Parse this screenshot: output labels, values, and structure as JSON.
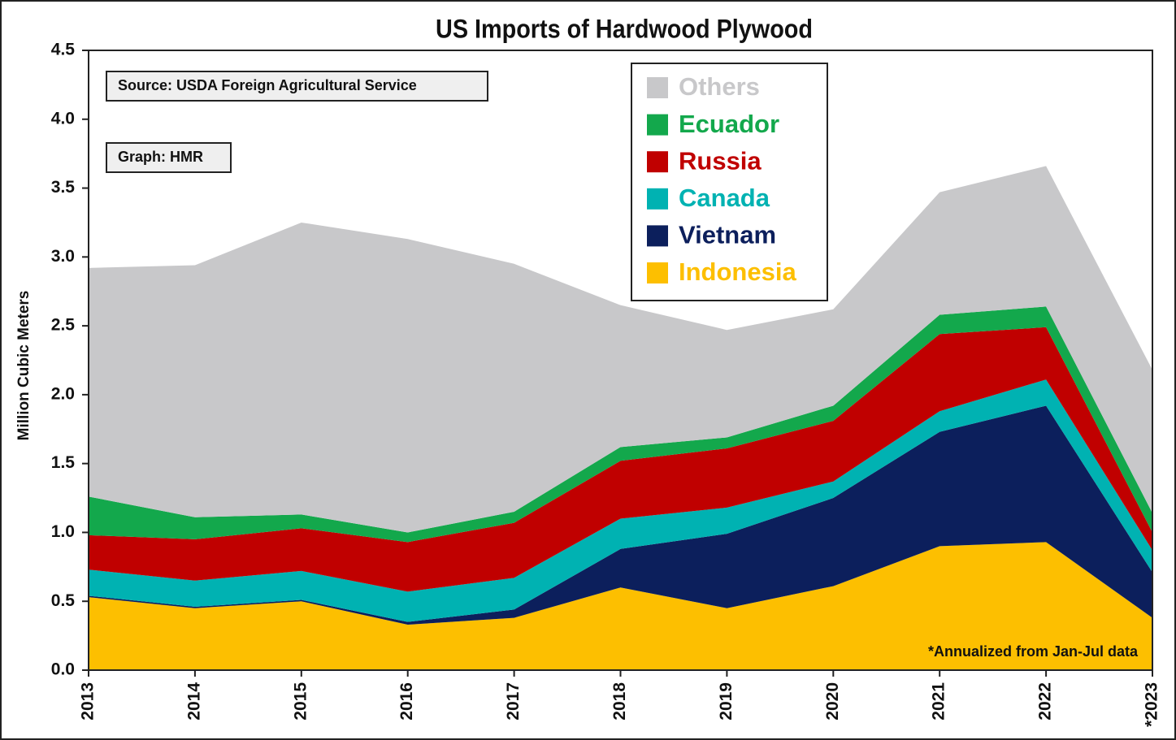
{
  "chart_data": {
    "type": "stacked_area",
    "title": "US Imports of Hardwood Plywood",
    "y_label": "Million Cubic Meters",
    "categories": [
      "2013",
      "2014",
      "2015",
      "2016",
      "2017",
      "2018",
      "2019",
      "2020",
      "2021",
      "2022",
      "*2023"
    ],
    "series": [
      {
        "name": "Indonesia",
        "color": "#fdbf00",
        "values": [
          0.53,
          0.45,
          0.5,
          0.33,
          0.38,
          0.6,
          0.45,
          0.61,
          0.9,
          0.93,
          0.38
        ]
      },
      {
        "name": "Vietnam",
        "color": "#0c1f5c",
        "values": [
          0.01,
          0.01,
          0.01,
          0.02,
          0.06,
          0.28,
          0.54,
          0.64,
          0.83,
          0.99,
          0.33
        ]
      },
      {
        "name": "Canada",
        "color": "#00b2b2",
        "values": [
          0.19,
          0.19,
          0.21,
          0.22,
          0.23,
          0.22,
          0.19,
          0.12,
          0.15,
          0.19,
          0.16
        ]
      },
      {
        "name": "Russia",
        "color": "#c00000",
        "values": [
          0.25,
          0.3,
          0.31,
          0.36,
          0.4,
          0.42,
          0.43,
          0.44,
          0.56,
          0.38,
          0.13
        ]
      },
      {
        "name": "Ecuador",
        "color": "#13a84c",
        "values": [
          0.28,
          0.16,
          0.1,
          0.07,
          0.08,
          0.1,
          0.08,
          0.11,
          0.14,
          0.15,
          0.14
        ]
      },
      {
        "name": "Others",
        "color": "#c8c8ca",
        "values": [
          1.66,
          1.83,
          2.12,
          2.13,
          1.8,
          1.03,
          0.78,
          0.7,
          0.89,
          1.02,
          1.04
        ]
      }
    ],
    "ylim": [
      0,
      4.5
    ],
    "yticks": [
      {
        "value": 0,
        "label": "0.0"
      },
      0.5,
      {
        "value": 1,
        "label": "1.0"
      },
      1.5,
      {
        "value": 2,
        "label": "2.0"
      },
      2.5,
      {
        "value": 3,
        "label": "3.0"
      },
      3.5,
      {
        "value": 4,
        "label": "4.0"
      },
      4.5
    ],
    "grid": false,
    "legend_position": "top-center",
    "annotations": [
      "Source: USDA Foreign Agricultural Service",
      "Graph: HMR",
      "*Annualized from Jan-Jul data"
    ]
  }
}
